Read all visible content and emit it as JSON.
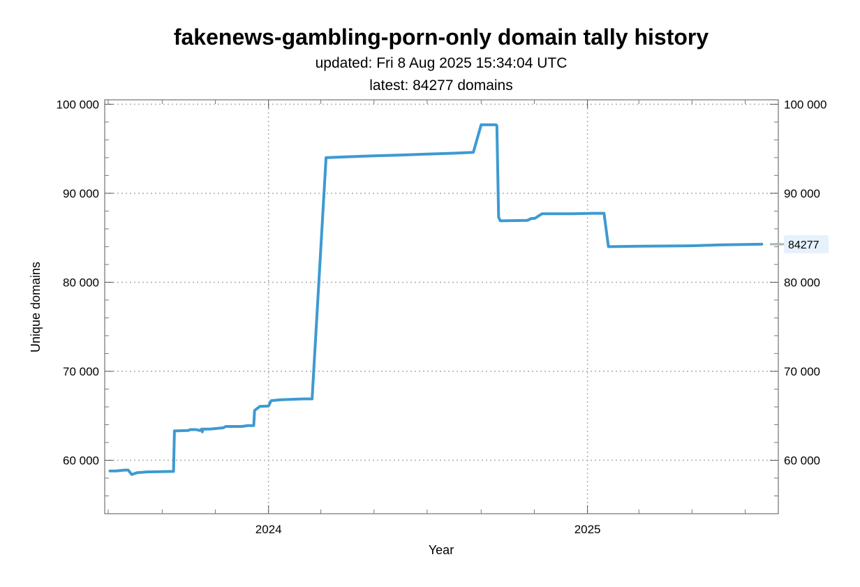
{
  "chart_data": {
    "type": "line",
    "title": "fakenews-gambling-porn-only domain tally history",
    "subtitle_lines": [
      "updated: Fri 8 Aug 2025 15:34:04 UTC",
      "latest: 84277 domains"
    ],
    "xlabel": "Year",
    "ylabel": "Unique domains",
    "xlim": [
      "2023-06-27",
      "2025-08-08"
    ],
    "ylim": [
      54000,
      100500
    ],
    "x_ticks_major": [
      "2024",
      "2025"
    ],
    "y_ticks": [
      60000,
      70000,
      80000,
      90000,
      100000
    ],
    "y_tick_labels": [
      "60 000",
      "70 000",
      "80 000",
      "90 000",
      "100 000"
    ],
    "grid": true,
    "line_color": "#3d9ad1",
    "latest_callout": {
      "value": 84277,
      "label": "84277"
    },
    "series": [
      {
        "name": "",
        "points": [
          [
            "2023-07-03",
            58800
          ],
          [
            "2023-07-10",
            58800
          ],
          [
            "2023-07-20",
            58900
          ],
          [
            "2023-07-24",
            58900
          ],
          [
            "2023-07-28",
            58400
          ],
          [
            "2023-08-03",
            58600
          ],
          [
            "2023-08-14",
            58700
          ],
          [
            "2023-09-14",
            58750
          ],
          [
            "2023-09-15",
            63300
          ],
          [
            "2023-10-01",
            63350
          ],
          [
            "2023-10-03",
            63450
          ],
          [
            "2023-10-10",
            63450
          ],
          [
            "2023-10-14",
            63350
          ],
          [
            "2023-10-16",
            63500
          ],
          [
            "2023-10-17",
            63200
          ],
          [
            "2023-10-18",
            63500
          ],
          [
            "2023-10-26",
            63500
          ],
          [
            "2023-11-10",
            63650
          ],
          [
            "2023-11-13",
            63800
          ],
          [
            "2023-12-01",
            63800
          ],
          [
            "2023-12-05",
            63850
          ],
          [
            "2023-12-08",
            63900
          ],
          [
            "2023-12-15",
            63900
          ],
          [
            "2023-12-16",
            65600
          ],
          [
            "2023-12-22",
            66050
          ],
          [
            "2024-01-01",
            66100
          ],
          [
            "2024-01-04",
            66700
          ],
          [
            "2024-01-15",
            66800
          ],
          [
            "2024-02-10",
            66900
          ],
          [
            "2024-02-20",
            66900
          ],
          [
            "2024-03-07",
            94000
          ],
          [
            "2024-04-01",
            94100
          ],
          [
            "2024-05-01",
            94200
          ],
          [
            "2024-06-01",
            94300
          ],
          [
            "2024-07-01",
            94400
          ],
          [
            "2024-08-01",
            94500
          ],
          [
            "2024-08-23",
            94600
          ],
          [
            "2024-09-01",
            97700
          ],
          [
            "2024-09-18",
            97700
          ],
          [
            "2024-09-19",
            97600
          ],
          [
            "2024-09-21",
            87300
          ],
          [
            "2024-09-23",
            86900
          ],
          [
            "2024-10-24",
            86950
          ],
          [
            "2024-10-28",
            87150
          ],
          [
            "2024-11-02",
            87200
          ],
          [
            "2024-11-05",
            87400
          ],
          [
            "2024-11-10",
            87700
          ],
          [
            "2024-12-15",
            87700
          ],
          [
            "2025-01-07",
            87750
          ],
          [
            "2025-01-20",
            87750
          ],
          [
            "2025-01-25",
            84000
          ],
          [
            "2025-03-01",
            84050
          ],
          [
            "2025-05-01",
            84100
          ],
          [
            "2025-06-01",
            84200
          ],
          [
            "2025-07-01",
            84250
          ],
          [
            "2025-07-20",
            84277
          ]
        ]
      }
    ]
  }
}
